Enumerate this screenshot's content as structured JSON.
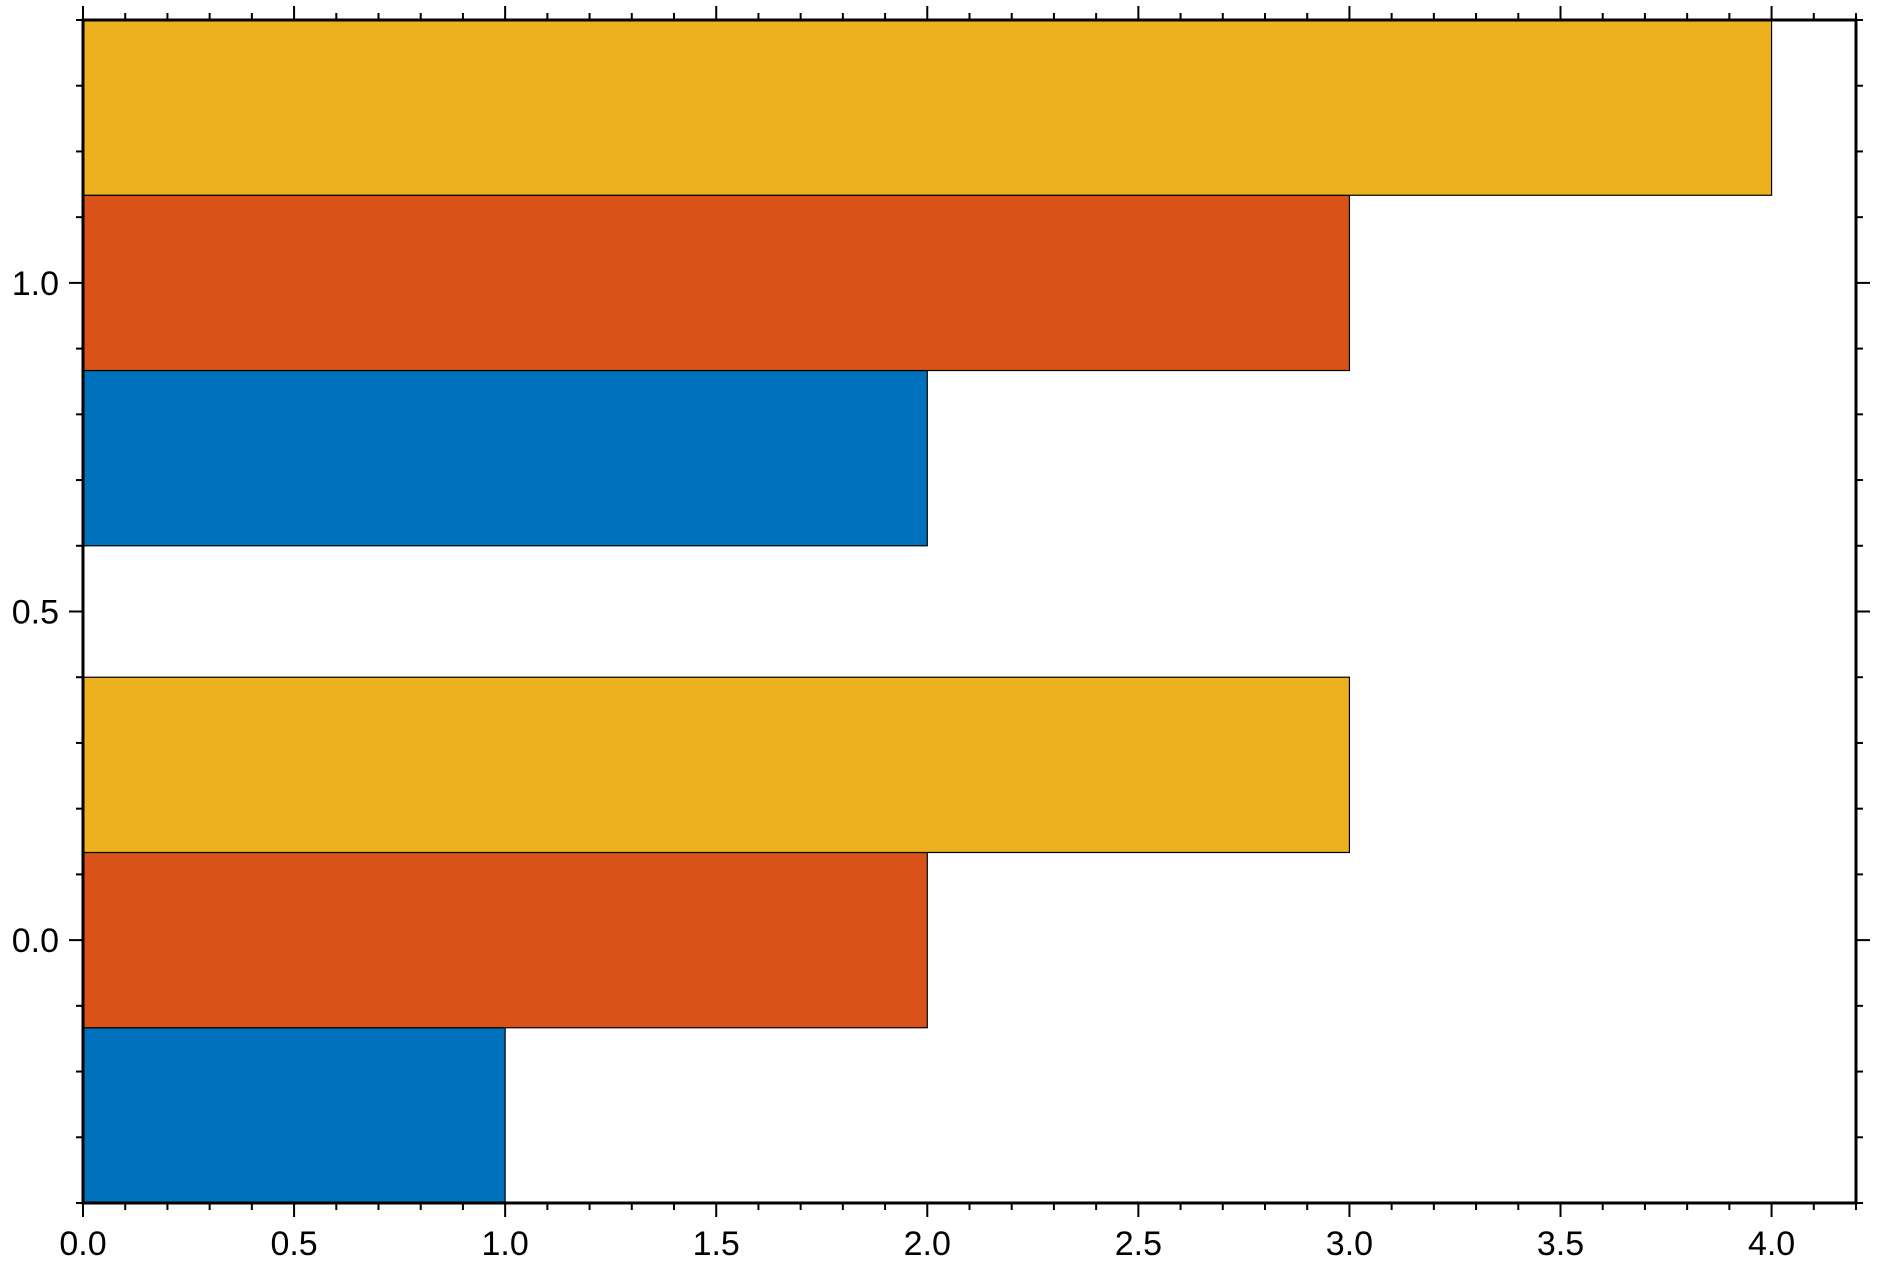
{
  "chart_data": {
    "type": "bar",
    "orientation": "horizontal",
    "groups": [
      0,
      1
    ],
    "series": [
      {
        "color": "#0072BD",
        "values": [
          1,
          2
        ]
      },
      {
        "color": "#D95319",
        "values": [
          2,
          3
        ]
      },
      {
        "color": "#EDB120",
        "values": [
          3,
          4
        ]
      }
    ],
    "bar_height": 0.26667,
    "xlim": [
      0,
      4.2
    ],
    "ylim": [
      -0.4,
      1.4
    ],
    "x_ticks": [
      0.0,
      0.5,
      1.0,
      1.5,
      2.0,
      2.5,
      3.0,
      3.5,
      4.0
    ],
    "x_tick_labels": [
      "0.0",
      "0.5",
      "1.0",
      "1.5",
      "2.0",
      "2.5",
      "3.0",
      "3.5",
      "4.0"
    ],
    "y_ticks": [
      0.0,
      0.5,
      1.0
    ],
    "y_tick_labels": [
      "0.0",
      "0.5",
      "1.0"
    ],
    "x_minor_step": 0.1,
    "y_minor_step": 0.1,
    "grid": false,
    "legend": false
  }
}
